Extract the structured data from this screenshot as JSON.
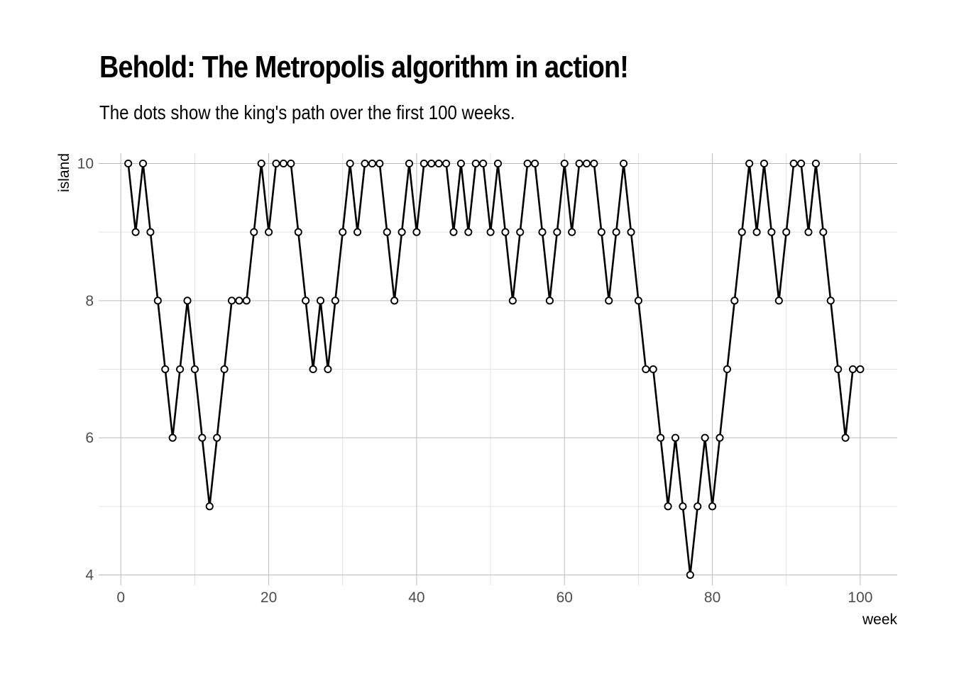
{
  "chart_data": {
    "type": "line",
    "title": "Behold: The Metropolis algorithm in action!",
    "subtitle": "The dots show the king's path over the first 100 weeks.",
    "xlabel": "week",
    "ylabel": "island",
    "xlim": [
      -3,
      105
    ],
    "ylim": [
      3.85,
      10.15
    ],
    "x_ticks": [
      0,
      20,
      40,
      60,
      80,
      100
    ],
    "y_ticks": [
      4,
      6,
      8,
      10
    ],
    "grid": true,
    "markers": "open-circle",
    "line_color": "#000000",
    "x": [
      1,
      2,
      3,
      4,
      5,
      6,
      7,
      8,
      9,
      10,
      11,
      12,
      13,
      14,
      15,
      16,
      17,
      18,
      19,
      20,
      21,
      22,
      23,
      24,
      25,
      26,
      27,
      28,
      29,
      30,
      31,
      32,
      33,
      34,
      35,
      36,
      37,
      38,
      39,
      40,
      41,
      42,
      43,
      44,
      45,
      46,
      47,
      48,
      49,
      50,
      51,
      52,
      53,
      54,
      55,
      56,
      57,
      58,
      59,
      60,
      61,
      62,
      63,
      64,
      65,
      66,
      67,
      68,
      69,
      70,
      71,
      72,
      73,
      74,
      75,
      76,
      77,
      78,
      79,
      80,
      81,
      82,
      83,
      84,
      85,
      86,
      87,
      88,
      89,
      90,
      91,
      92,
      93,
      94,
      95,
      96,
      97,
      98,
      99,
      100
    ],
    "y": [
      10,
      9,
      10,
      9,
      8,
      7,
      6,
      7,
      8,
      7,
      6,
      5,
      6,
      7,
      8,
      8,
      8,
      9,
      10,
      9,
      10,
      10,
      10,
      9,
      8,
      7,
      8,
      7,
      8,
      9,
      10,
      9,
      10,
      10,
      10,
      9,
      8,
      9,
      10,
      9,
      10,
      10,
      10,
      10,
      9,
      10,
      9,
      10,
      10,
      9,
      10,
      9,
      8,
      9,
      10,
      10,
      9,
      8,
      9,
      10,
      9,
      10,
      10,
      10,
      9,
      8,
      9,
      10,
      9,
      8,
      7,
      7,
      6,
      5,
      6,
      5,
      4,
      5,
      6,
      5,
      6,
      7,
      8,
      9,
      10,
      9,
      10,
      9,
      8,
      9,
      10,
      10,
      9,
      10,
      9,
      8,
      7,
      6,
      7,
      7
    ]
  }
}
